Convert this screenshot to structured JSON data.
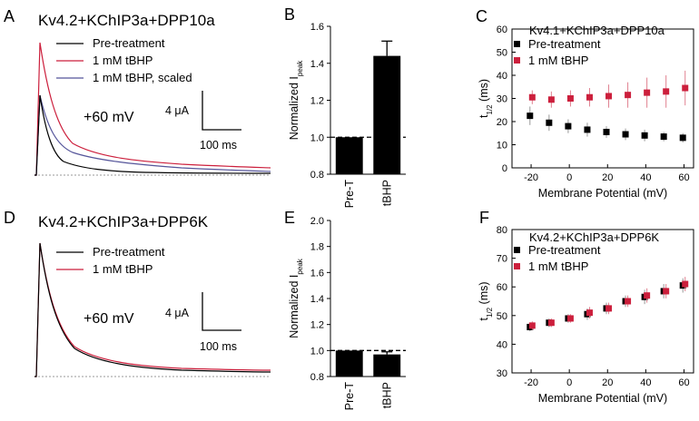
{
  "colors": {
    "black": "#000000",
    "red": "#cc1f3c",
    "blue": "#55559a",
    "gray": "#999999"
  },
  "traces": [
    {
      "letter": "A",
      "title": "Kv4.2+KChIP3a+DPP10a",
      "legend": [
        "Pre-treatment",
        "1 mM tBHP",
        "1 mM tBHP, scaled"
      ],
      "voltage": "+60 mV",
      "scale_current": "4 μA",
      "scale_time": "100 ms"
    },
    {
      "letter": "D",
      "title": "Kv4.2+KChIP3a+DPP6K",
      "legend": [
        "Pre-treatment",
        "1 mM tBHP"
      ],
      "voltage": "+60 mV",
      "scale_current": "4 μA",
      "scale_time": "100 ms"
    }
  ],
  "chart_data": [
    {
      "panel": "B",
      "type": "bar",
      "categories": [
        "Pre-T",
        "tBHP"
      ],
      "values": [
        1.0,
        1.44
      ],
      "errors": [
        0,
        0.08
      ],
      "ylabel": "Normalized I",
      "ylabel_sub": "peak",
      "ylim": [
        0.8,
        1.6
      ],
      "yticks": [
        "0.8",
        "1.0",
        "1.2",
        "1.4",
        "1.6"
      ],
      "reference_line": 1.0
    },
    {
      "panel": "E",
      "type": "bar",
      "categories": [
        "Pre-T",
        "tBHP"
      ],
      "values": [
        1.0,
        0.97
      ],
      "errors": [
        0,
        0.02
      ],
      "ylabel": "Normalized I",
      "ylabel_sub": "peak",
      "ylim": [
        0.8,
        2.0
      ],
      "yticks": [
        "0.8",
        "1.0",
        "1.2",
        "1.4",
        "1.6",
        "1.8",
        "2.0"
      ],
      "reference_line": 1.0
    },
    {
      "panel": "C",
      "type": "scatter",
      "title": "Kv4.1+KChIP3a+DPP10a",
      "xlabel": "Membrane Potential (mV)",
      "ylabel": "t",
      "ylabel_sub": "1/2",
      "ylabel_unit": "(ms)",
      "xlim": [
        -30,
        65
      ],
      "ylim": [
        0,
        60
      ],
      "xticks": [
        "-20",
        "0",
        "20",
        "40",
        "60"
      ],
      "yticks": [
        "0",
        "10",
        "20",
        "30",
        "40",
        "50",
        "60"
      ],
      "x": [
        -20,
        -10,
        0,
        10,
        20,
        30,
        40,
        50,
        60
      ],
      "series": [
        {
          "name": "Pre-treatment",
          "values": [
            22.5,
            19.5,
            18,
            16.5,
            15.5,
            14.5,
            14,
            13.5,
            13
          ],
          "errors": [
            4,
            3.5,
            3,
            3,
            2.5,
            2.5,
            2.5,
            2,
            2
          ]
        },
        {
          "name": "1 mM tBHP",
          "values": [
            30.5,
            29.5,
            30,
            30.5,
            31,
            31.5,
            32.5,
            33,
            34.5
          ],
          "errors": [
            3,
            3.5,
            3.5,
            4,
            5,
            5.5,
            6.5,
            7,
            7.5
          ]
        }
      ]
    },
    {
      "panel": "F",
      "type": "scatter",
      "title": "Kv4.2+KChIP3a+DPP6K",
      "xlabel": "Membrane Potential (mV)",
      "ylabel": "t",
      "ylabel_sub": "1/2",
      "ylabel_unit": "(ms)",
      "xlim": [
        -30,
        65
      ],
      "ylim": [
        30,
        80
      ],
      "xticks": [
        "-20",
        "0",
        "20",
        "40",
        "60"
      ],
      "yticks": [
        "30",
        "40",
        "50",
        "60",
        "70",
        "80"
      ],
      "x": [
        -20,
        -10,
        0,
        10,
        20,
        30,
        40,
        50,
        60
      ],
      "series": [
        {
          "name": "Pre-treatment",
          "values": [
            46,
            47.5,
            49,
            50.5,
            52.5,
            55,
            56.5,
            58.5,
            60.5
          ],
          "errors": [
            1.5,
            1.5,
            1.5,
            2,
            2,
            2,
            2.5,
            2.5,
            2.5
          ]
        },
        {
          "name": "1 mM tBHP",
          "values": [
            46.5,
            47.5,
            49,
            51,
            52.5,
            55,
            57,
            58.5,
            61
          ],
          "errors": [
            1.5,
            1.5,
            1.5,
            2,
            2,
            2,
            2.5,
            2.5,
            2.5
          ]
        }
      ]
    }
  ]
}
